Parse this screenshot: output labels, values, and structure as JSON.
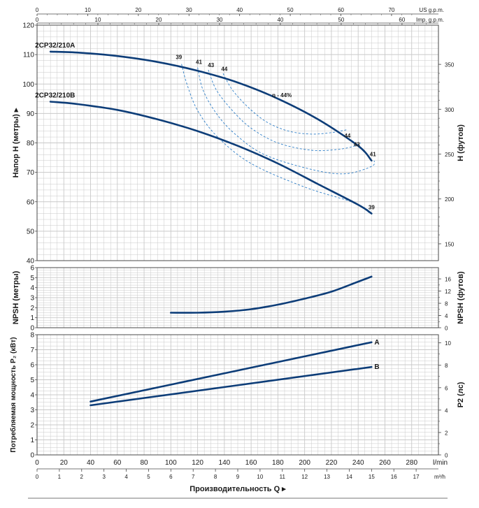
{
  "colors": {
    "curve": "#0d3d78",
    "efficiency": "#2f7fc8",
    "grid": "#c9c9c9",
    "frame": "#4a4a4a"
  },
  "top_axes": {
    "us_unit": "US g.p.m.",
    "imp_unit": "Imp. g.p.m.",
    "us_ticks": [
      0,
      10,
      20,
      30,
      40,
      50,
      60,
      70
    ],
    "imp_ticks": [
      0,
      10,
      20,
      30,
      40,
      50,
      60
    ]
  },
  "bottom_axes": {
    "lmin_unit": "l/min",
    "m3h_unit": "m³/h",
    "lmin_ticks": [
      0,
      20,
      40,
      60,
      80,
      100,
      120,
      140,
      160,
      180,
      200,
      220,
      240,
      260,
      280
    ],
    "m3h_ticks": [
      0,
      1,
      2,
      3,
      4,
      5,
      6,
      7,
      8,
      9,
      10,
      11,
      12,
      13,
      14,
      15,
      16,
      17
    ],
    "title": "Производительность Q ▸"
  },
  "chart_data": [
    {
      "type": "line",
      "id": "head",
      "ylabel": "Напор H (метры) ▸",
      "ylabel_right": "H (футов)",
      "xlim": [
        0,
        300
      ],
      "ylim": [
        40,
        120
      ],
      "yticks": [
        40,
        50,
        60,
        70,
        80,
        90,
        100,
        110,
        120
      ],
      "yticks_right": [
        150,
        200,
        250,
        300,
        350
      ],
      "series": [
        {
          "name": "2CP32/210A",
          "x": [
            10,
            30,
            60,
            90,
            120,
            150,
            180,
            210,
            240,
            250
          ],
          "y": [
            111,
            110.7,
            109.5,
            107.5,
            104.5,
            100.5,
            95,
            88,
            79,
            74
          ]
        },
        {
          "name": "2CP32/210B",
          "x": [
            10,
            30,
            60,
            90,
            120,
            150,
            180,
            210,
            240,
            250
          ],
          "y": [
            94,
            93.2,
            91.2,
            88,
            84,
            79,
            73,
            66,
            59,
            56
          ]
        }
      ],
      "efficiency_labels": [
        {
          "text": "39",
          "x": 106,
          "y": 108.5
        },
        {
          "text": "41",
          "x": 121,
          "y": 106.8
        },
        {
          "text": "43",
          "x": 130,
          "y": 105.7
        },
        {
          "text": "44",
          "x": 140,
          "y": 104.5
        },
        {
          "text": "η - 44%",
          "x": 183,
          "y": 95.5
        },
        {
          "text": "44",
          "x": 232,
          "y": 81.8
        },
        {
          "text": "43",
          "x": 239,
          "y": 78.8
        },
        {
          "text": "41",
          "x": 251,
          "y": 75.5
        },
        {
          "text": "39",
          "x": 250,
          "y": 57.5
        }
      ],
      "efficiency_curves": [
        {
          "name": "39",
          "x": [
            108,
            112,
            120,
            135,
            160,
            200,
            235,
            248,
            246
          ],
          "y": [
            106.8,
            100,
            91,
            82,
            73,
            65,
            60,
            57,
            56.3
          ]
        },
        {
          "name": "41",
          "x": [
            120,
            124,
            134,
            148,
            170,
            205,
            230,
            250,
            252
          ],
          "y": [
            105.6,
            98,
            90,
            83,
            76,
            71,
            69.5,
            72,
            74
          ]
        },
        {
          "name": "43",
          "x": [
            128,
            134,
            146,
            160,
            180,
            205,
            225,
            238,
            242
          ],
          "y": [
            104.8,
            98,
            91,
            85,
            80,
            77.5,
            77.8,
            79,
            80
          ]
        },
        {
          "name": "44",
          "x": [
            139,
            146,
            158,
            172,
            188,
            205,
            220,
            232
          ],
          "y": [
            103.6,
            98,
            92,
            87,
            84,
            83,
            83.5,
            84.5
          ]
        }
      ]
    },
    {
      "type": "line",
      "id": "npsh",
      "ylabel": "NPSH (метры)",
      "ylabel_right": "NPSH (футов)",
      "xlim": [
        0,
        300
      ],
      "ylim": [
        0,
        6
      ],
      "yticks": [
        0,
        1,
        2,
        3,
        4,
        5,
        6
      ],
      "yticks_right": [
        0,
        4,
        8,
        12,
        16
      ],
      "series": [
        {
          "name": "",
          "x": [
            100,
            120,
            140,
            160,
            180,
            200,
            220,
            240,
            250
          ],
          "y": [
            1.5,
            1.5,
            1.6,
            1.85,
            2.3,
            2.9,
            3.6,
            4.6,
            5.1
          ]
        }
      ]
    },
    {
      "type": "line",
      "id": "power",
      "ylabel": "Потребляемая мощность P₂ (кВт)",
      "ylabel_right": "P2 (лс)",
      "xlim": [
        0,
        300
      ],
      "ylim": [
        0,
        8
      ],
      "yticks": [
        0,
        1,
        2,
        3,
        4,
        5,
        6,
        7,
        8
      ],
      "yticks_right": [
        0,
        2,
        4,
        6,
        8,
        10
      ],
      "series": [
        {
          "name": "A",
          "x": [
            40,
            250
          ],
          "y": [
            3.55,
            7.5
          ]
        },
        {
          "name": "B",
          "x": [
            40,
            250
          ],
          "y": [
            3.3,
            5.85
          ]
        }
      ]
    }
  ]
}
